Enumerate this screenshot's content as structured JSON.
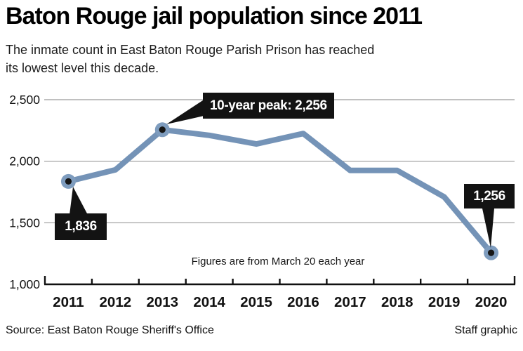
{
  "header": {
    "title": "Baton Rouge jail population since 2011",
    "subtitle_lines": [
      "The inmate count in East Baton Rouge Parish Prison has reached",
      "its lowest level this decade."
    ]
  },
  "chart_data": {
    "type": "line",
    "title": "Baton Rouge jail population since 2011",
    "categories": [
      "2011",
      "2012",
      "2013",
      "2014",
      "2015",
      "2016",
      "2017",
      "2018",
      "2019",
      "2020"
    ],
    "values": [
      1836,
      1930,
      2256,
      2210,
      2140,
      2225,
      1925,
      1925,
      1710,
      1256
    ],
    "xlabel": "",
    "ylabel": "",
    "ylim": [
      1000,
      2500
    ],
    "ytick_values": [
      1000,
      1500,
      2000,
      2500
    ],
    "ytick_labels": [
      "1,000",
      "1,500",
      "2,000",
      "2,500"
    ],
    "grid": "horizontal",
    "legend": "none",
    "line_color": "#7493B7",
    "marker_ring_color": "#7E9CBE",
    "marker_dot_color": "#161616",
    "marker_indices": [
      0,
      2,
      9
    ],
    "annotations": [
      {
        "index": 0,
        "year": "2011",
        "value": 1836,
        "label": "1,836"
      },
      {
        "index": 2,
        "year": "2013",
        "value": 2256,
        "label": "10-year peak: 2,256"
      },
      {
        "index": 9,
        "year": "2020",
        "value": 1256,
        "label": "1,256"
      }
    ],
    "note": "Figures are from March 20 each year"
  },
  "footer": {
    "source": "Source: East Baton Rouge Sheriff's Office",
    "credit": "Staff graphic"
  }
}
